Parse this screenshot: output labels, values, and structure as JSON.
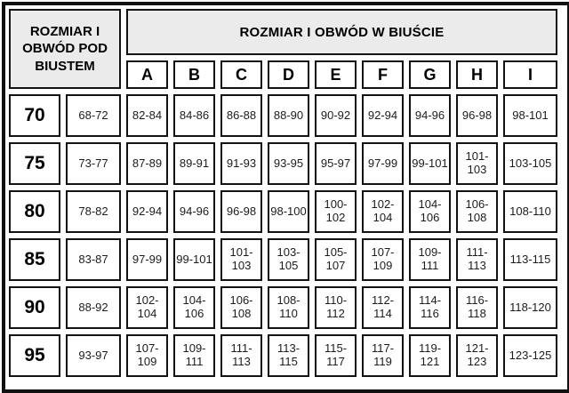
{
  "chart_data": {
    "type": "table",
    "corner_header": "ROZMIAR I OBWÓD POD BIUSTEM",
    "main_header": "ROZMIAR I OBWÓD W BIUŚCIE",
    "cup_columns": [
      "A",
      "B",
      "C",
      "D",
      "E",
      "F",
      "G",
      "H",
      "I"
    ],
    "rows": [
      {
        "size": "70",
        "underbust": "68-72",
        "cups": [
          "82-84",
          "84-86",
          "86-88",
          "88-90",
          "90-92",
          "92-94",
          "94-96",
          "96-98",
          "98-101"
        ]
      },
      {
        "size": "75",
        "underbust": "73-77",
        "cups": [
          "87-89",
          "89-91",
          "91-93",
          "93-95",
          "95-97",
          "97-99",
          "99-101",
          "101-103",
          "103-105"
        ]
      },
      {
        "size": "80",
        "underbust": "78-82",
        "cups": [
          "92-94",
          "94-96",
          "96-98",
          "98-100",
          "100-102",
          "102-104",
          "104-106",
          "106-108",
          "108-110"
        ]
      },
      {
        "size": "85",
        "underbust": "83-87",
        "cups": [
          "97-99",
          "99-101",
          "101-103",
          "103-105",
          "105-107",
          "107-109",
          "109-111",
          "111-113",
          "113-115"
        ]
      },
      {
        "size": "90",
        "underbust": "88-92",
        "cups": [
          "102-104",
          "104-106",
          "106-108",
          "108-110",
          "110-112",
          "112-114",
          "114-116",
          "116-118",
          "118-120"
        ]
      },
      {
        "size": "95",
        "underbust": "93-97",
        "cups": [
          "107-109",
          "109-111",
          "111-113",
          "113-115",
          "115-117",
          "117-119",
          "119-121",
          "121-123",
          "123-125"
        ]
      }
    ]
  },
  "colors": {
    "header_bg": "#ebebeb",
    "cell_bg": "#ffffff",
    "border": "#131313",
    "text": "#000000"
  }
}
